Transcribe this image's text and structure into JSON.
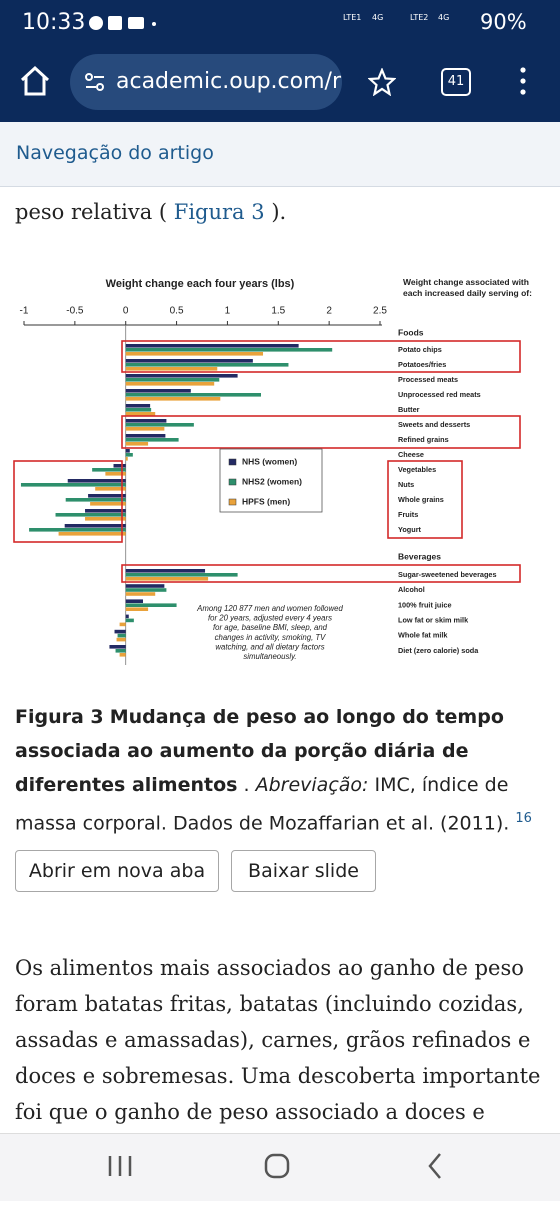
{
  "status": {
    "time": "10:33",
    "net1": "4G",
    "net2": "4G",
    "sim1": "LTE1",
    "sim2": "LTE2",
    "battery": "90%"
  },
  "browser": {
    "url": "academic.oup.com/r",
    "tabs": "41"
  },
  "nav": {
    "title": "Navegação do artigo"
  },
  "article": {
    "lead": "peso relativa (",
    "link": "Figura 3",
    "tail": ")."
  },
  "chart_data": {
    "type": "bar",
    "orientation": "horizontal",
    "title": "Weight change each four years (lbs)",
    "right_title": "Weight change associated with each increased daily serving of:",
    "group_labels": [
      "Foods",
      "Beverages"
    ],
    "categories": [
      "Potato chips",
      "Potatoes/fries",
      "Processed meats",
      "Unprocessed red meats",
      "Butter",
      "Sweets and desserts",
      "Refined grains",
      "Cheese",
      "Vegetables",
      "Nuts",
      "Whole grains",
      "Fruits",
      "Yogurt",
      "Sugar-sweetened beverages",
      "Alcohol",
      "100% fruit juice",
      "Low fat or skim milk",
      "Whole fat milk",
      "Diet (zero calorie) soda"
    ],
    "series": [
      {
        "name": "NHS (women)",
        "color": "#232a63",
        "values": [
          1.7,
          1.25,
          1.1,
          0.64,
          0.24,
          0.4,
          0.39,
          0.04,
          -0.12,
          -0.57,
          -0.37,
          -0.4,
          -0.6,
          0.78,
          0.38,
          0.17,
          0.03,
          -0.11,
          -0.16
        ]
      },
      {
        "name": "NHS2 (women)",
        "color": "#2e8f6c",
        "values": [
          2.03,
          1.6,
          0.92,
          1.33,
          0.25,
          0.67,
          0.52,
          0.07,
          -0.33,
          -1.03,
          -0.59,
          -0.69,
          -0.95,
          1.1,
          0.4,
          0.5,
          0.08,
          -0.08,
          -0.1
        ]
      },
      {
        "name": "HPFS (men)",
        "color": "#e9a23b",
        "values": [
          1.35,
          0.9,
          0.87,
          0.93,
          0.29,
          0.38,
          0.22,
          0.02,
          -0.2,
          -0.3,
          -0.35,
          -0.4,
          -0.66,
          0.81,
          0.29,
          0.22,
          -0.06,
          -0.09,
          -0.06
        ]
      }
    ],
    "xlim": [
      -1,
      2.5
    ],
    "xticks": [
      -1,
      -0.5,
      0,
      0.5,
      1,
      1.5,
      2,
      2.5
    ],
    "annotation": "Among 120 877 men and women followed for 20 years, adjusted every 4 years for age, baseline BMI, sleep, and changes in activity, smoking, TV watching, and all dietary factors simultaneously."
  },
  "caption": {
    "label": "Figura 3",
    "title": "Mudança de peso ao longo do tempo associada ao aumento da porção diária de diferentes alimentos",
    "sep": ".",
    "abbr": "Abreviação:",
    "text": "IMC, índice de massa corporal. Dados de Mozaffarian et al. (2011).",
    "ref": "16"
  },
  "buttons": [
    "Abrir em nova aba",
    "Baixar slide"
  ],
  "paragraph": "Os alimentos mais associados ao ganho de peso foram batatas fritas, batatas (incluindo cozidas, assadas e amassadas), carnes, grãos refinados e doces e sobremesas. Uma descoberta importante foi que o ganho de peso associado a doces e"
}
